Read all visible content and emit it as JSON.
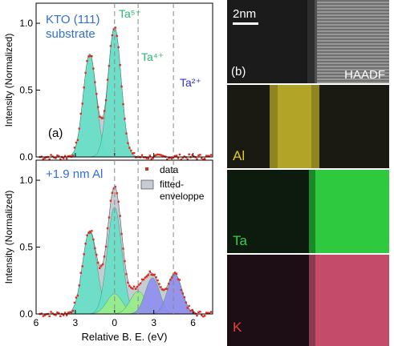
{
  "chart_data": [
    {
      "type": "line",
      "panel_label": "(a)",
      "annotation": "KTO (111)\nsubstrate",
      "ylabel": "Intensity (Normalized)",
      "xlim": [
        6,
        -7.5
      ],
      "ylim": [
        0,
        1.15
      ],
      "yticks": [
        0.0,
        0.5,
        1.0
      ],
      "peak_markers": [
        {
          "label": "Ta⁵⁺",
          "x": 0.0,
          "color": "#2bb673"
        },
        {
          "label": "Ta⁴⁺",
          "x": -1.8,
          "color": "#2bb673"
        },
        {
          "label": "Ta²⁺",
          "x": -4.5,
          "color": "#3333cc"
        }
      ],
      "components": [
        {
          "center": 1.9,
          "amp": 0.77,
          "sigma": 0.5,
          "fill": "#66e0c8"
        },
        {
          "center": 0.0,
          "amp": 0.97,
          "sigma": 0.5,
          "fill": "#66e0c8"
        }
      ],
      "series": [
        {
          "name": "data",
          "style": "points",
          "color": "#e32a1a"
        },
        {
          "name": "fitted-enveloppe",
          "style": "area",
          "color": "#c6ccd3"
        }
      ]
    },
    {
      "type": "line",
      "panel_label": "",
      "annotation": "+1.9 nm Al",
      "xlabel": "Relative B. E. (eV)",
      "ylabel": "Intensity (Normalized)",
      "xlim": [
        6,
        -7.5
      ],
      "ylim": [
        0,
        1.15
      ],
      "xticks": [
        6,
        3,
        0,
        -3,
        -6
      ],
      "yticks": [
        0.0,
        0.5,
        1.0
      ],
      "legend": [
        "data",
        "fitted-\nenveloppe"
      ],
      "legend_position": "top-right",
      "components": [
        {
          "center": 1.9,
          "amp": 0.62,
          "sigma": 0.55,
          "fill": "#66e0c8"
        },
        {
          "center": 0.0,
          "amp": 0.8,
          "sigma": 0.55,
          "fill": "#66e0c8"
        },
        {
          "center": 0.0,
          "amp": 0.15,
          "sigma": 0.6,
          "fill": "#99ee88"
        },
        {
          "center": -1.8,
          "amp": 0.17,
          "sigma": 0.6,
          "fill": "#99ee88"
        },
        {
          "center": -2.9,
          "amp": 0.27,
          "sigma": 0.55,
          "fill": "#8f8ff0"
        },
        {
          "center": -4.6,
          "amp": 0.3,
          "sigma": 0.55,
          "fill": "#8f8ff0"
        }
      ],
      "series": [
        {
          "name": "data",
          "style": "points",
          "color": "#e32a1a"
        },
        {
          "name": "fitted-enveloppe",
          "style": "area",
          "color": "#c6ccd3"
        }
      ]
    }
  ],
  "maps": {
    "panel_label": "(b)",
    "scalebar": "2nm",
    "panels": [
      {
        "label": "HAADF",
        "color": "#dddddd"
      },
      {
        "label": "Al",
        "color": "#e8d21e"
      },
      {
        "label": "Ta",
        "color": "#22c93a"
      },
      {
        "label": "K",
        "color": "#e0506e"
      }
    ]
  }
}
